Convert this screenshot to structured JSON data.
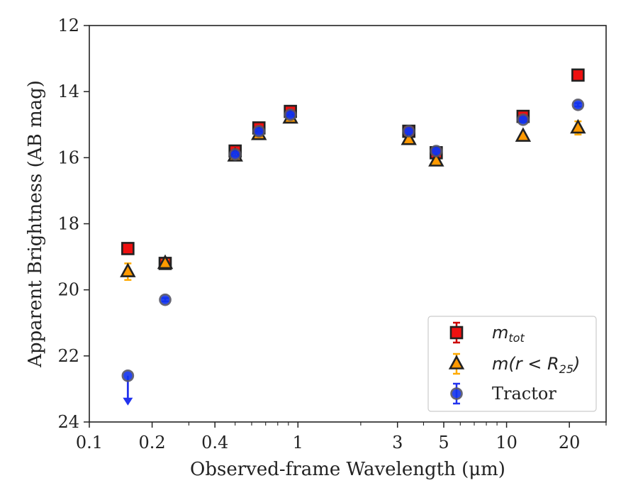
{
  "chart_data": {
    "type": "scatter",
    "xlabel": "Observed-frame Wavelength (μm)",
    "ylabel": "Apparent Brightness (AB mag)",
    "xscale": "log",
    "xlim": [
      0.1,
      30
    ],
    "ylim": [
      24,
      12
    ],
    "y_inverted": true,
    "grid": false,
    "legend_position": "lower-right",
    "x_tick_labels": [
      "0.1",
      "0.2",
      "0.4",
      "1",
      "3",
      "5",
      "10",
      "20"
    ],
    "y_tick_labels": [
      "12",
      "14",
      "16",
      "18",
      "20",
      "22",
      "24"
    ],
    "series": [
      {
        "name": "m_tot",
        "legend_label": {
          "base": "m",
          "sub": "tot"
        },
        "marker": "square",
        "color": "#ee1111",
        "edgecolor": "#222222",
        "errorcolor": "#cc0000",
        "points": [
          {
            "x": 0.153,
            "y": 18.75,
            "err": 0.05
          },
          {
            "x": 0.231,
            "y": 19.2,
            "err": 0.05
          },
          {
            "x": 0.5,
            "y": 15.8,
            "err": 0.05
          },
          {
            "x": 0.65,
            "y": 15.1,
            "err": 0.05
          },
          {
            "x": 0.92,
            "y": 14.6,
            "err": 0.05
          },
          {
            "x": 3.4,
            "y": 15.2,
            "err": 0.05
          },
          {
            "x": 4.6,
            "y": 15.85,
            "err": 0.05
          },
          {
            "x": 12.0,
            "y": 14.75,
            "err": 0.05
          },
          {
            "x": 22.0,
            "y": 13.5,
            "err": 0.05
          }
        ]
      },
      {
        "name": "m(r < R25)",
        "legend_label": {
          "base": "m(r < R",
          "sub": "25",
          "tail": ")"
        },
        "marker": "triangle",
        "color": "#ff9900",
        "edgecolor": "#222222",
        "errorcolor": "#ffaa00",
        "points": [
          {
            "x": 0.153,
            "y": 19.45,
            "err": 0.25
          },
          {
            "x": 0.231,
            "y": 19.2,
            "err": 0.1
          },
          {
            "x": 0.5,
            "y": 15.95,
            "err": 0.05
          },
          {
            "x": 0.65,
            "y": 15.3,
            "err": 0.05
          },
          {
            "x": 0.92,
            "y": 14.8,
            "err": 0.05
          },
          {
            "x": 3.4,
            "y": 15.45,
            "err": 0.05
          },
          {
            "x": 4.6,
            "y": 16.1,
            "err": 0.05
          },
          {
            "x": 12.0,
            "y": 15.35,
            "err": 0.05
          },
          {
            "x": 22.0,
            "y": 15.1,
            "err": 0.2
          }
        ]
      },
      {
        "name": "Tractor",
        "legend_label": {
          "base": "Tractor"
        },
        "marker": "circle",
        "color": "#1133ee",
        "edgecolor": "#555566",
        "errorcolor": "#2233ee",
        "points": [
          {
            "x": 0.153,
            "y": 22.6,
            "err": 0.0,
            "upper_limit": true
          },
          {
            "x": 0.231,
            "y": 20.3,
            "err": 0.05
          },
          {
            "x": 0.5,
            "y": 15.9,
            "err": 0.05
          },
          {
            "x": 0.65,
            "y": 15.2,
            "err": 0.05
          },
          {
            "x": 0.92,
            "y": 14.7,
            "err": 0.05
          },
          {
            "x": 3.4,
            "y": 15.2,
            "err": 0.05
          },
          {
            "x": 4.6,
            "y": 15.8,
            "err": 0.05
          },
          {
            "x": 12.0,
            "y": 14.85,
            "err": 0.05
          },
          {
            "x": 22.0,
            "y": 14.4,
            "err": 0.05
          }
        ]
      }
    ]
  }
}
